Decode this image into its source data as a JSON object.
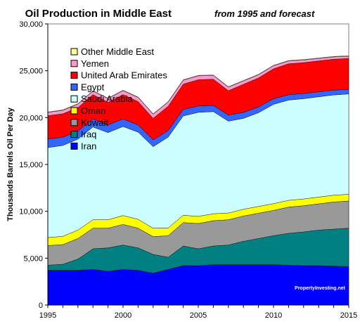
{
  "chart_data": {
    "type": "area",
    "stacked": true,
    "title": "Oil Production in Middle East",
    "subtitle": "from 1995 and forecast",
    "ylabel": "Thousands Barrels Oil Per Day",
    "xlabel": "",
    "xlim": [
      1995,
      2015
    ],
    "ylim": [
      0,
      30000
    ],
    "x": [
      1995,
      1996,
      1997,
      1998,
      1999,
      2000,
      2001,
      2002,
      2003,
      2004,
      2005,
      2006,
      2007,
      2008,
      2009,
      2010,
      2011,
      2012,
      2013,
      2014,
      2015
    ],
    "x_ticks": [
      "1995",
      "2000",
      "2005",
      "2010",
      "2015"
    ],
    "y_ticks": [
      "0",
      "5,000",
      "10,000",
      "15,000",
      "20,000",
      "25,000",
      "30,000"
    ],
    "grid": false,
    "legend_position": "upper-left inside",
    "series": [
      {
        "name": "Iran",
        "color": "#0000ff",
        "values": [
          3700,
          3700,
          3700,
          3800,
          3600,
          3800,
          3700,
          3400,
          3800,
          4200,
          4200,
          4300,
          4300,
          4300,
          4300,
          4300,
          4250,
          4200,
          4200,
          4150,
          4100
        ]
      },
      {
        "name": "Iraq",
        "color": "#008080",
        "values": [
          550,
          650,
          1200,
          2200,
          2500,
          2600,
          2400,
          2000,
          1300,
          2100,
          1800,
          2000,
          2100,
          2500,
          2800,
          3100,
          3400,
          3600,
          3800,
          3950,
          4100
        ]
      },
      {
        "name": "Kuwait",
        "color": "#999999",
        "values": [
          2100,
          2100,
          2200,
          2200,
          2100,
          2200,
          2100,
          1900,
          2300,
          2500,
          2700,
          2700,
          2700,
          2700,
          2700,
          2700,
          2800,
          2800,
          2800,
          2900,
          2900
        ]
      },
      {
        "name": "Oman",
        "color": "#ffff00",
        "values": [
          850,
          880,
          900,
          900,
          900,
          950,
          950,
          900,
          820,
          780,
          760,
          740,
          720,
          720,
          720,
          720,
          720,
          720,
          720,
          720,
          720
        ]
      },
      {
        "name": "Saudi Arabia",
        "color": "#ccffff",
        "values": [
          9600,
          9700,
          9700,
          9900,
          9300,
          9500,
          9300,
          8700,
          9700,
          10600,
          11100,
          10900,
          9800,
          9700,
          10000,
          10600,
          10700,
          10700,
          10700,
          10700,
          10700
        ]
      },
      {
        "name": "Egypt",
        "color": "#3366ff",
        "values": [
          900,
          880,
          860,
          850,
          830,
          800,
          760,
          720,
          700,
          690,
          680,
          660,
          650,
          630,
          610,
          590,
          570,
          550,
          530,
          510,
          490
        ]
      },
      {
        "name": "United Arab Emirates",
        "color": "#ff0000",
        "values": [
          2500,
          2500,
          2500,
          2600,
          2400,
          2600,
          2500,
          2300,
          2600,
          2700,
          2800,
          2800,
          2600,
          3000,
          3100,
          3200,
          3300,
          3300,
          3300,
          3300,
          3300
        ]
      },
      {
        "name": "Yemen",
        "color": "#ff99cc",
        "values": [
          350,
          370,
          380,
          380,
          400,
          430,
          440,
          440,
          440,
          420,
          420,
          400,
          380,
          360,
          340,
          320,
          300,
          280,
          260,
          250,
          240
        ]
      },
      {
        "name": "Other Middle East",
        "color": "#ffff99",
        "values": [
          50,
          50,
          50,
          50,
          50,
          50,
          50,
          50,
          50,
          50,
          50,
          50,
          50,
          50,
          50,
          50,
          50,
          50,
          50,
          50,
          50
        ]
      }
    ],
    "legend_order": [
      "Other Middle East",
      "Yemen",
      "United Arab Emirates",
      "Egypt",
      "Saudi Arabia",
      "Oman",
      "Kuwait",
      "Iraq",
      "Iran"
    ],
    "watermark": "PropertyInvesting.net"
  }
}
